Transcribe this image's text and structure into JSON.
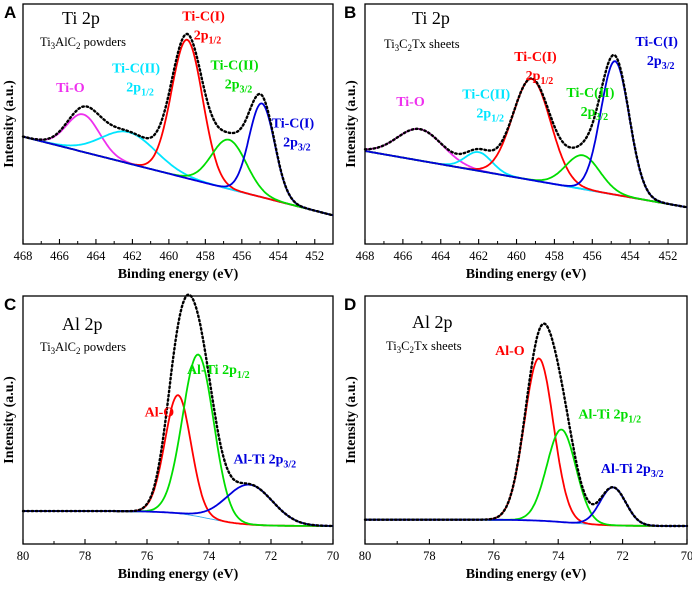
{
  "colors": {
    "envelope": "#000000",
    "ti_c1": "#ff0000",
    "ti_c2": "#00dd00",
    "ti_c3": "#0000dd",
    "cyan": "#00e5ff",
    "magenta": "#ee30ee",
    "background": "#33aaee",
    "bg_green": "#22dd22"
  },
  "chart_data": [
    {
      "panel": "A",
      "type": "line",
      "title": "Ti 2p",
      "subtitle": {
        "pre": "Ti",
        "s1": "3",
        "mid": "AlC",
        "s2": "2",
        "post": " powders"
      },
      "xlabel": "Binding energy (eV)",
      "ylabel": "Intensity (a.u.)",
      "xlim": [
        468,
        451
      ],
      "xticks": [
        468,
        466,
        464,
        462,
        460,
        458,
        456,
        454,
        452
      ],
      "baseline": {
        "color": "bg_green",
        "start": 1.0,
        "end": 0.12
      },
      "peaks": [
        {
          "label": "Ti-O",
          "sub": "",
          "center": 464.7,
          "width": 0.9,
          "height": 0.42,
          "color": "magenta",
          "lx": 465.4,
          "ly": 1.5
        },
        {
          "label": "Ti-C(II)",
          "sub": "2p1/2",
          "center": 462.2,
          "width": 1.5,
          "height": 0.35,
          "color": "cyan",
          "lx": 461.8,
          "ly": 1.72
        },
        {
          "label": "Ti-C(I)",
          "sub": "2p1/2",
          "center": 459.0,
          "width": 0.85,
          "height": 1.55,
          "color": "ti_c1",
          "lx": 458.1,
          "ly": 2.3
        },
        {
          "label": "Ti-C(II)",
          "sub": "2p3/2",
          "center": 456.7,
          "width": 0.95,
          "height": 0.55,
          "color": "ti_c2",
          "lx": 456.4,
          "ly": 1.75
        },
        {
          "label": "Ti-C(I)",
          "sub": "2p3/2",
          "center": 454.9,
          "width": 0.7,
          "height": 1.05,
          "color": "ti_c3",
          "lx": 453.2,
          "ly": 1.1
        }
      ],
      "ymax": 2.35
    },
    {
      "panel": "B",
      "type": "line",
      "title": "Ti 2p",
      "subtitle": {
        "pre": "Ti",
        "s1": "3",
        "mid": "C",
        "s2": "2",
        "post": "Tx sheets"
      },
      "xlabel": "Binding energy (eV)",
      "ylabel": "Intensity (a.u.)",
      "xlim": [
        468,
        451
      ],
      "xticks": [
        468,
        466,
        464,
        462,
        460,
        458,
        456,
        454,
        452
      ],
      "baseline": {
        "color": "bg_green",
        "start": 1.0,
        "end": 0.25
      },
      "peaks": [
        {
          "label": "Ti-O",
          "sub": "",
          "center": 465.1,
          "width": 1.2,
          "height": 0.42,
          "color": "magenta",
          "lx": 465.6,
          "ly": 1.6
        },
        {
          "label": "Ti-C(II)",
          "sub": "2p1/2",
          "center": 462.0,
          "width": 0.7,
          "height": 0.25,
          "color": "cyan",
          "lx": 461.6,
          "ly": 1.7
        },
        {
          "label": "Ti-C(I)",
          "sub": "2p1/2",
          "center": 459.2,
          "width": 1.0,
          "height": 1.35,
          "color": "ti_c1",
          "lx": 459.0,
          "ly": 2.2
        },
        {
          "label": "Ti-C(II)",
          "sub": "2p3/2",
          "center": 456.5,
          "width": 0.9,
          "height": 0.45,
          "color": "ti_c2",
          "lx": 456.1,
          "ly": 1.72
        },
        {
          "label": "Ti-C(I)",
          "sub": "2p3/2",
          "center": 454.8,
          "width": 0.75,
          "height": 1.78,
          "color": "ti_c3",
          "lx": 452.6,
          "ly": 2.4
        }
      ],
      "ymax": 2.8
    },
    {
      "panel": "C",
      "type": "line",
      "title": "Al 2p",
      "subtitle": {
        "pre": "Ti",
        "s1": "3",
        "mid": "AlC",
        "s2": "2",
        "post": " powders"
      },
      "xlabel": "Binding energy (eV)",
      "ylabel": "Intensity (a.u.)",
      "xlim": [
        80,
        70
      ],
      "xticks": [
        80,
        78,
        76,
        74,
        72,
        70
      ],
      "baseline": {
        "color": "background",
        "start": 0.12,
        "end": 0.0,
        "shape": "step"
      },
      "peaks": [
        {
          "label": "Al-O",
          "sub": "",
          "center": 75.0,
          "width": 0.42,
          "height": 0.95,
          "color": "ti_c1",
          "lx": 75.6,
          "ly": 0.88
        },
        {
          "label": "Al-Ti 2p",
          "sub": "1/2",
          "center": 74.35,
          "width": 0.5,
          "height": 1.3,
          "color": "ti_c2",
          "lx": 73.7,
          "ly": 1.22
        },
        {
          "label": "Al-Ti 2p",
          "sub": "3/2",
          "center": 72.7,
          "width": 0.75,
          "height": 0.32,
          "color": "ti_c3",
          "lx": 72.2,
          "ly": 0.5
        }
      ],
      "ymax": 1.75
    },
    {
      "panel": "D",
      "type": "line",
      "title": "Al 2p",
      "subtitle": {
        "pre": "Ti",
        "s1": "3",
        "mid": "C",
        "s2": "2",
        "post": "Tx sheets"
      },
      "xlabel": "Binding energy (eV)",
      "ylabel": "Intensity (a.u.)",
      "xlim": [
        80,
        70
      ],
      "xticks": [
        80,
        78,
        76,
        74,
        72,
        70
      ],
      "baseline": {
        "color": "background",
        "start": 0.05,
        "end": 0.0,
        "shape": "step"
      },
      "peaks": [
        {
          "label": "Al-O",
          "sub": "",
          "center": 74.6,
          "width": 0.45,
          "height": 1.28,
          "color": "ti_c1",
          "lx": 75.5,
          "ly": 1.35
        },
        {
          "label": "Al-Ti 2p",
          "sub": "1/2",
          "center": 73.9,
          "width": 0.45,
          "height": 0.73,
          "color": "ti_c2",
          "lx": 72.4,
          "ly": 0.85
        },
        {
          "label": "Al-Ti 2p",
          "sub": "3/2",
          "center": 72.3,
          "width": 0.4,
          "height": 0.3,
          "color": "ti_c3",
          "lx": 71.7,
          "ly": 0.42
        }
      ],
      "ymax": 1.72
    }
  ]
}
